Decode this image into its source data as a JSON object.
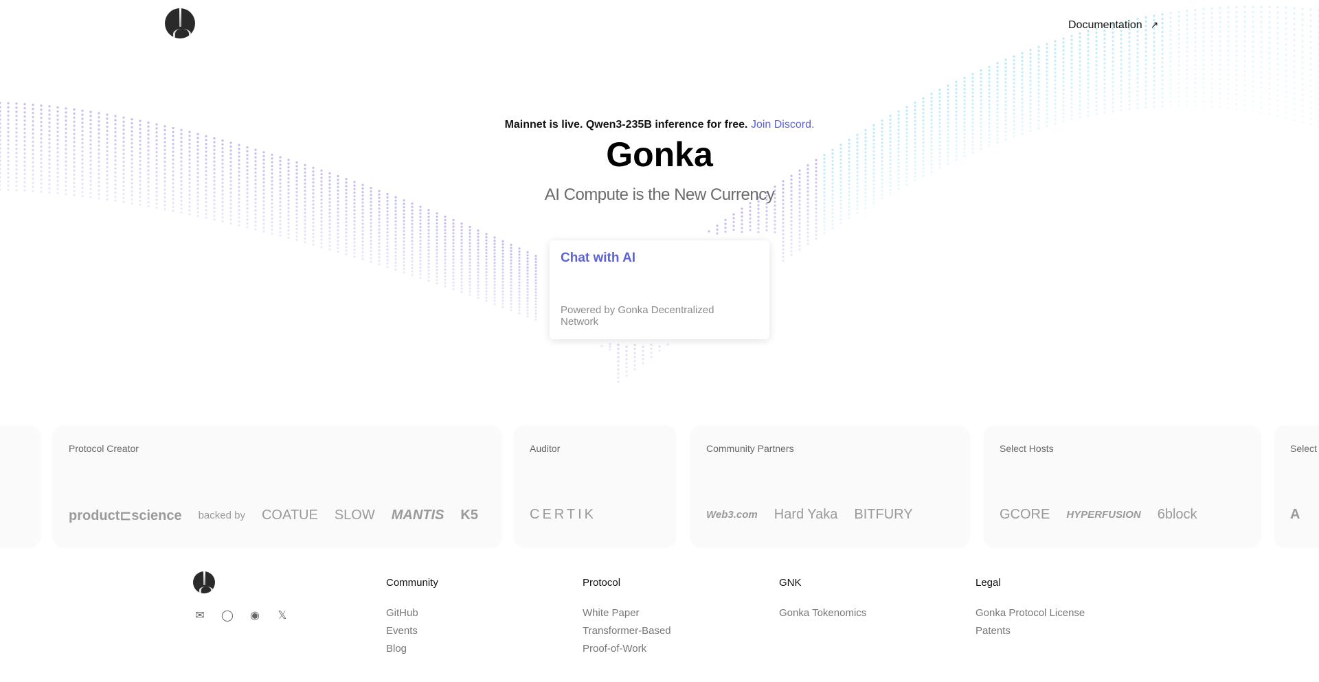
{
  "header": {
    "documentation_label": "Documentation",
    "documentation_icon": "arrow-up-right-icon"
  },
  "hero": {
    "announcement": "Mainnet is live. Qwen3-235B inference for free.",
    "announcement_link": "Join Discord.",
    "title": "Gonka",
    "subtitle": "AI Compute is the New Currency"
  },
  "chat_card": {
    "title": "Chat with AI",
    "subtitle": "Powered by Gonka Decentralized Network"
  },
  "partners": [
    {
      "label": "Protocol Creator",
      "logos": [
        "product⊏science",
        "backed by",
        "COATUE",
        "SLOW",
        "MANTIS",
        "K5"
      ]
    },
    {
      "label": "Auditor",
      "logos": [
        "CERTIK"
      ]
    },
    {
      "label": "Community Partners",
      "logos": [
        "Web3.com",
        "Hard Yaka",
        "BITFURY"
      ]
    },
    {
      "label": "Select Hosts",
      "logos": [
        "GCORE",
        "HYPERFUSION",
        "6block"
      ]
    },
    {
      "label": "Select A",
      "logos": [
        "A"
      ]
    }
  ],
  "footer": {
    "social": [
      "mail-icon",
      "github-icon",
      "discord-icon",
      "x-icon"
    ],
    "columns": [
      {
        "title": "Community",
        "links": [
          "GitHub",
          "Events",
          "Blog"
        ]
      },
      {
        "title": "Protocol",
        "links": [
          "White Paper",
          "Transformer-Based",
          "Proof-of-Work"
        ]
      },
      {
        "title": "GNK",
        "links": [
          "Gonka Tokenomics"
        ]
      },
      {
        "title": "Legal",
        "links": [
          "Gonka Protocol License",
          "Patents"
        ]
      }
    ]
  },
  "colors": {
    "accent": "#5b63d6",
    "wave_purple": "#a9a6f0",
    "wave_cyan": "#9be3f5"
  }
}
